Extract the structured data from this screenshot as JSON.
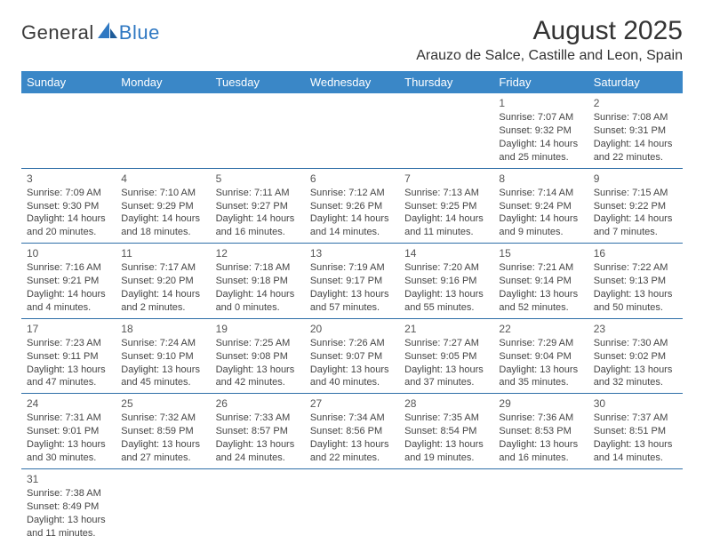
{
  "logo": {
    "text1": "General",
    "text2": "Blue"
  },
  "title": "August 2025",
  "location": "Arauzo de Salce, Castille and Leon, Spain",
  "colors": {
    "header_bg": "#3a87c7",
    "header_text": "#ffffff",
    "border": "#2f6fa8",
    "logo_accent": "#2f78c2",
    "text": "#444444"
  },
  "daysOfWeek": [
    "Sunday",
    "Monday",
    "Tuesday",
    "Wednesday",
    "Thursday",
    "Friday",
    "Saturday"
  ],
  "weeks": [
    [
      null,
      null,
      null,
      null,
      null,
      {
        "n": "1",
        "sr": "Sunrise: 7:07 AM",
        "ss": "Sunset: 9:32 PM",
        "d1": "Daylight: 14 hours",
        "d2": "and 25 minutes."
      },
      {
        "n": "2",
        "sr": "Sunrise: 7:08 AM",
        "ss": "Sunset: 9:31 PM",
        "d1": "Daylight: 14 hours",
        "d2": "and 22 minutes."
      }
    ],
    [
      {
        "n": "3",
        "sr": "Sunrise: 7:09 AM",
        "ss": "Sunset: 9:30 PM",
        "d1": "Daylight: 14 hours",
        "d2": "and 20 minutes."
      },
      {
        "n": "4",
        "sr": "Sunrise: 7:10 AM",
        "ss": "Sunset: 9:29 PM",
        "d1": "Daylight: 14 hours",
        "d2": "and 18 minutes."
      },
      {
        "n": "5",
        "sr": "Sunrise: 7:11 AM",
        "ss": "Sunset: 9:27 PM",
        "d1": "Daylight: 14 hours",
        "d2": "and 16 minutes."
      },
      {
        "n": "6",
        "sr": "Sunrise: 7:12 AM",
        "ss": "Sunset: 9:26 PM",
        "d1": "Daylight: 14 hours",
        "d2": "and 14 minutes."
      },
      {
        "n": "7",
        "sr": "Sunrise: 7:13 AM",
        "ss": "Sunset: 9:25 PM",
        "d1": "Daylight: 14 hours",
        "d2": "and 11 minutes."
      },
      {
        "n": "8",
        "sr": "Sunrise: 7:14 AM",
        "ss": "Sunset: 9:24 PM",
        "d1": "Daylight: 14 hours",
        "d2": "and 9 minutes."
      },
      {
        "n": "9",
        "sr": "Sunrise: 7:15 AM",
        "ss": "Sunset: 9:22 PM",
        "d1": "Daylight: 14 hours",
        "d2": "and 7 minutes."
      }
    ],
    [
      {
        "n": "10",
        "sr": "Sunrise: 7:16 AM",
        "ss": "Sunset: 9:21 PM",
        "d1": "Daylight: 14 hours",
        "d2": "and 4 minutes."
      },
      {
        "n": "11",
        "sr": "Sunrise: 7:17 AM",
        "ss": "Sunset: 9:20 PM",
        "d1": "Daylight: 14 hours",
        "d2": "and 2 minutes."
      },
      {
        "n": "12",
        "sr": "Sunrise: 7:18 AM",
        "ss": "Sunset: 9:18 PM",
        "d1": "Daylight: 14 hours",
        "d2": "and 0 minutes."
      },
      {
        "n": "13",
        "sr": "Sunrise: 7:19 AM",
        "ss": "Sunset: 9:17 PM",
        "d1": "Daylight: 13 hours",
        "d2": "and 57 minutes."
      },
      {
        "n": "14",
        "sr": "Sunrise: 7:20 AM",
        "ss": "Sunset: 9:16 PM",
        "d1": "Daylight: 13 hours",
        "d2": "and 55 minutes."
      },
      {
        "n": "15",
        "sr": "Sunrise: 7:21 AM",
        "ss": "Sunset: 9:14 PM",
        "d1": "Daylight: 13 hours",
        "d2": "and 52 minutes."
      },
      {
        "n": "16",
        "sr": "Sunrise: 7:22 AM",
        "ss": "Sunset: 9:13 PM",
        "d1": "Daylight: 13 hours",
        "d2": "and 50 minutes."
      }
    ],
    [
      {
        "n": "17",
        "sr": "Sunrise: 7:23 AM",
        "ss": "Sunset: 9:11 PM",
        "d1": "Daylight: 13 hours",
        "d2": "and 47 minutes."
      },
      {
        "n": "18",
        "sr": "Sunrise: 7:24 AM",
        "ss": "Sunset: 9:10 PM",
        "d1": "Daylight: 13 hours",
        "d2": "and 45 minutes."
      },
      {
        "n": "19",
        "sr": "Sunrise: 7:25 AM",
        "ss": "Sunset: 9:08 PM",
        "d1": "Daylight: 13 hours",
        "d2": "and 42 minutes."
      },
      {
        "n": "20",
        "sr": "Sunrise: 7:26 AM",
        "ss": "Sunset: 9:07 PM",
        "d1": "Daylight: 13 hours",
        "d2": "and 40 minutes."
      },
      {
        "n": "21",
        "sr": "Sunrise: 7:27 AM",
        "ss": "Sunset: 9:05 PM",
        "d1": "Daylight: 13 hours",
        "d2": "and 37 minutes."
      },
      {
        "n": "22",
        "sr": "Sunrise: 7:29 AM",
        "ss": "Sunset: 9:04 PM",
        "d1": "Daylight: 13 hours",
        "d2": "and 35 minutes."
      },
      {
        "n": "23",
        "sr": "Sunrise: 7:30 AM",
        "ss": "Sunset: 9:02 PM",
        "d1": "Daylight: 13 hours",
        "d2": "and 32 minutes."
      }
    ],
    [
      {
        "n": "24",
        "sr": "Sunrise: 7:31 AM",
        "ss": "Sunset: 9:01 PM",
        "d1": "Daylight: 13 hours",
        "d2": "and 30 minutes."
      },
      {
        "n": "25",
        "sr": "Sunrise: 7:32 AM",
        "ss": "Sunset: 8:59 PM",
        "d1": "Daylight: 13 hours",
        "d2": "and 27 minutes."
      },
      {
        "n": "26",
        "sr": "Sunrise: 7:33 AM",
        "ss": "Sunset: 8:57 PM",
        "d1": "Daylight: 13 hours",
        "d2": "and 24 minutes."
      },
      {
        "n": "27",
        "sr": "Sunrise: 7:34 AM",
        "ss": "Sunset: 8:56 PM",
        "d1": "Daylight: 13 hours",
        "d2": "and 22 minutes."
      },
      {
        "n": "28",
        "sr": "Sunrise: 7:35 AM",
        "ss": "Sunset: 8:54 PM",
        "d1": "Daylight: 13 hours",
        "d2": "and 19 minutes."
      },
      {
        "n": "29",
        "sr": "Sunrise: 7:36 AM",
        "ss": "Sunset: 8:53 PM",
        "d1": "Daylight: 13 hours",
        "d2": "and 16 minutes."
      },
      {
        "n": "30",
        "sr": "Sunrise: 7:37 AM",
        "ss": "Sunset: 8:51 PM",
        "d1": "Daylight: 13 hours",
        "d2": "and 14 minutes."
      }
    ],
    [
      {
        "n": "31",
        "sr": "Sunrise: 7:38 AM",
        "ss": "Sunset: 8:49 PM",
        "d1": "Daylight: 13 hours",
        "d2": "and 11 minutes."
      },
      null,
      null,
      null,
      null,
      null,
      null
    ]
  ]
}
